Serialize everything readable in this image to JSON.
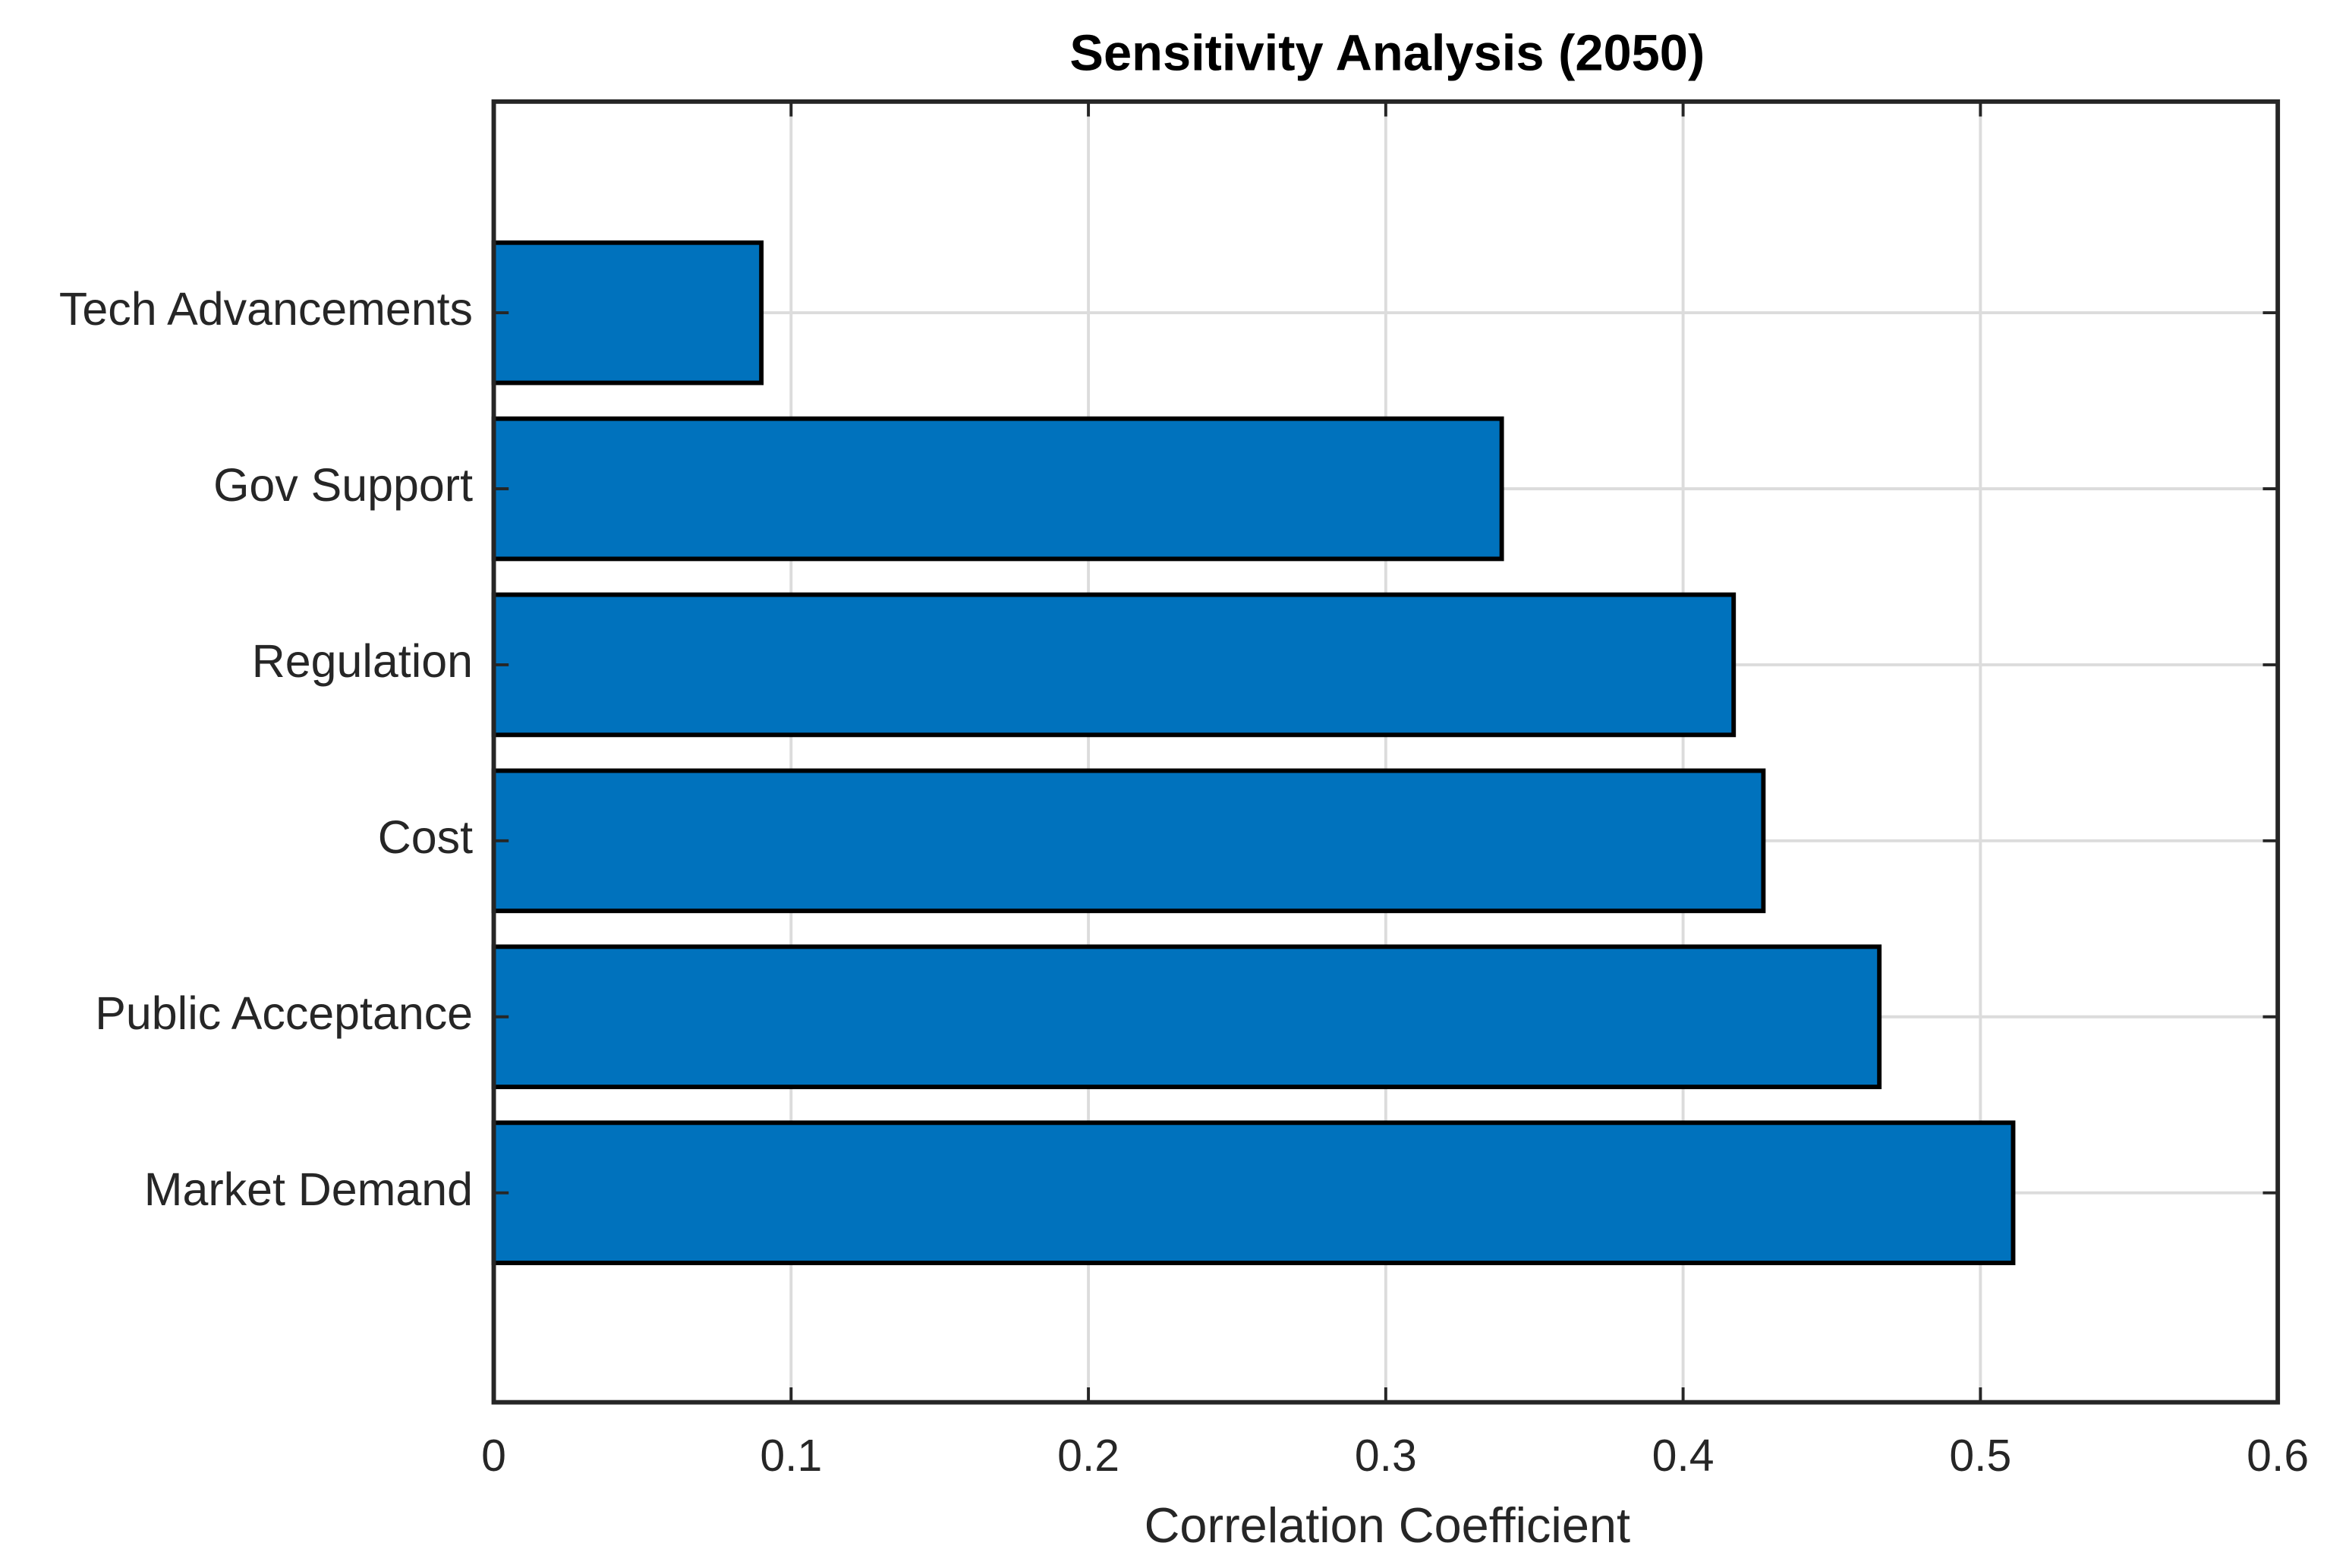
{
  "chart_data": {
    "type": "barh",
    "title": "Sensitivity Analysis (2050)",
    "xlabel": "Correlation Coefficient",
    "categories": [
      "Market Demand",
      "Public Acceptance",
      "Cost",
      "Regulation",
      "Gov Support",
      "Tech Advancements"
    ],
    "values": [
      0.511,
      0.466,
      0.427,
      0.417,
      0.339,
      0.09
    ],
    "color": "#0072bd",
    "xlim": [
      0,
      0.6
    ],
    "xticks": [
      0,
      0.1,
      0.2,
      0.3,
      0.4,
      0.5,
      0.6
    ],
    "grid": true
  }
}
